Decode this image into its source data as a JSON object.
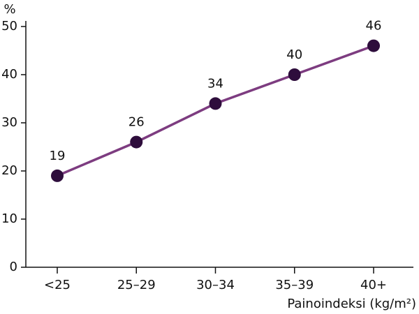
{
  "chart_data": {
    "type": "line",
    "y_label": "%",
    "x_label": "Painoindeksi (kg/m²)",
    "categories": [
      "<25",
      "25–29",
      "30–34",
      "35–39",
      "40+"
    ],
    "series": [
      {
        "name": null,
        "color": "#7d3c80",
        "marker_color": "#2e0d3c",
        "values": [
          19,
          26,
          34,
          40,
          46
        ]
      }
    ],
    "ylim": [
      0,
      50
    ],
    "yticks": [
      0,
      10,
      20,
      30,
      40,
      50
    ]
  }
}
